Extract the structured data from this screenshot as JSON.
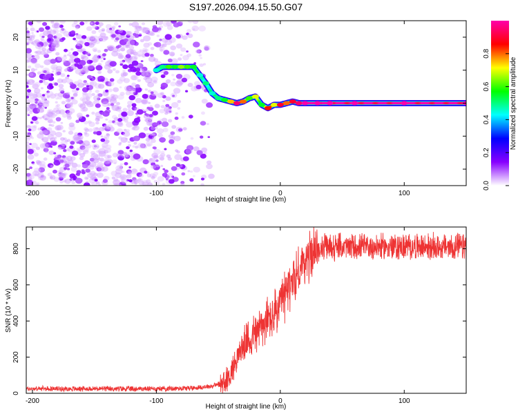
{
  "title": "S197.2026.094.15.50.G07",
  "chart_data": [
    {
      "type": "heatmap",
      "name": "spectrogram",
      "xlabel": "Height of straight line (km)",
      "ylabel": "Frequency (Hz)",
      "xlim": [
        -205,
        150
      ],
      "ylim": [
        -25,
        25
      ],
      "xticks": [
        -200,
        -100,
        0,
        100
      ],
      "yticks": [
        -20,
        -10,
        0,
        10,
        20
      ],
      "colorbar": {
        "label": "Normalized spectral amplitude",
        "range": [
          0,
          1
        ],
        "ticks": [
          "0.0",
          "0.2",
          "0.4",
          "0.6",
          "0.8"
        ],
        "colors": [
          "#ffffff",
          "#8800ff",
          "#0000ff",
          "#00ffff",
          "#00ff00",
          "#ffff00",
          "#ff0000",
          "#ff00aa"
        ]
      },
      "noise_region_x": [
        -205,
        -55
      ],
      "ridge": {
        "x": [
          -100,
          -95,
          -90,
          -85,
          -80,
          -75,
          -70,
          -65,
          -60,
          -55,
          -50,
          -45,
          -40,
          -35,
          -30,
          -25,
          -20,
          -15,
          -10,
          -5,
          0,
          5,
          10,
          15,
          20,
          30,
          40,
          60,
          100,
          150
        ],
        "y": [
          10,
          11,
          11,
          11,
          11,
          11,
          11,
          8.5,
          6,
          3,
          1.5,
          1,
          0.5,
          0,
          0.5,
          1.5,
          2,
          -0.5,
          -1.5,
          -0.5,
          -0.5,
          0,
          0.5,
          0,
          0,
          0,
          0,
          0,
          0,
          0
        ],
        "amplitude": [
          0.45,
          0.5,
          0.6,
          0.55,
          0.65,
          0.6,
          0.55,
          0.45,
          0.5,
          0.45,
          0.5,
          0.55,
          0.75,
          0.95,
          0.8,
          0.6,
          0.7,
          0.55,
          0.85,
          0.7,
          0.9,
          0.8,
          0.9,
          0.95,
          1,
          1,
          1,
          1,
          1,
          1
        ]
      }
    },
    {
      "type": "line",
      "name": "snr",
      "xlabel": "Height of straight line (km)",
      "ylabel": "SNR (10 * v/v)",
      "xlim": [
        -205,
        150
      ],
      "ylim": [
        0,
        920
      ],
      "xticks": [
        -200,
        -100,
        0,
        100
      ],
      "yticks": [
        0,
        200,
        400,
        600,
        800
      ],
      "color": "#ee3333",
      "trend": {
        "x": [
          -205,
          -150,
          -100,
          -70,
          -55,
          -45,
          -40,
          -35,
          -30,
          -25,
          -20,
          -15,
          -10,
          -5,
          0,
          5,
          10,
          15,
          20,
          25,
          30,
          40,
          60,
          100,
          150
        ],
        "y": [
          25,
          25,
          25,
          30,
          40,
          60,
          110,
          200,
          260,
          300,
          340,
          370,
          400,
          430,
          480,
          560,
          620,
          680,
          730,
          770,
          800,
          810,
          810,
          810,
          810
        ]
      }
    }
  ]
}
